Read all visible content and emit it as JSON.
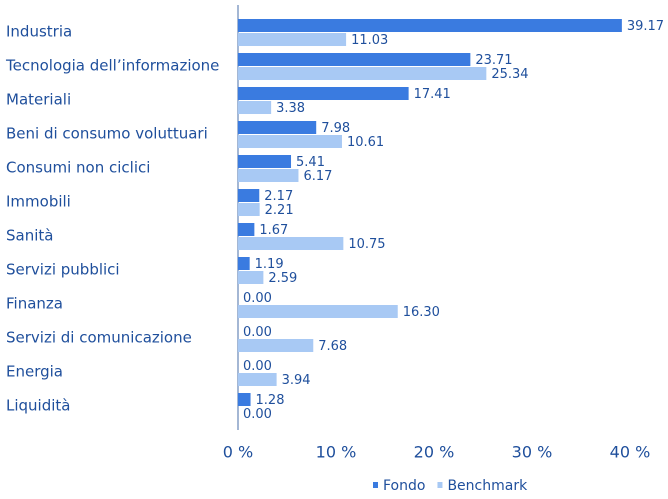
{
  "chart_data": {
    "type": "bar",
    "orientation": "horizontal",
    "categories": [
      "Industria",
      "Tecnologia dell’informazione",
      "Materiali",
      "Beni di consumo voluttuari",
      "Consumi non ciclici",
      "Immobili",
      "Sanità",
      "Servizi pubblici",
      "Finanza",
      "Servizi di comunicazione",
      "Energia",
      "Liquidità"
    ],
    "series": [
      {
        "name": "Fondo",
        "color": "#3a7be0",
        "values": [
          39.17,
          23.71,
          17.41,
          7.98,
          5.41,
          2.17,
          1.67,
          1.19,
          0,
          0,
          0,
          1.28
        ],
        "value_labels": [
          "39.17",
          "23.71",
          "17.41",
          "7.98",
          "5.41",
          "2.17",
          "1.67",
          "1.19",
          "0.00",
          "0.00",
          "0.00",
          "1.28"
        ]
      },
      {
        "name": "Benchmark",
        "color": "#a8c9f4",
        "values": [
          11.03,
          25.34,
          3.38,
          10.61,
          6.17,
          2.21,
          10.75,
          2.59,
          16.3,
          7.68,
          3.94,
          0
        ],
        "value_labels": [
          "11.03",
          "25.34",
          "3.38",
          "10.61",
          "6.17",
          "2.21",
          "10.75",
          "2.59",
          "16.30",
          "7.68",
          "3.94",
          "0.00"
        ]
      }
    ],
    "xlim": [
      0,
      40
    ],
    "xticks": [
      {
        "value": 0,
        "label": "0 %"
      },
      {
        "value": 10,
        "label": "10 %"
      },
      {
        "value": 20,
        "label": "20 %"
      },
      {
        "value": 30,
        "label": "30 %"
      },
      {
        "value": 40,
        "label": "40 %"
      }
    ],
    "legend": "bottom"
  }
}
